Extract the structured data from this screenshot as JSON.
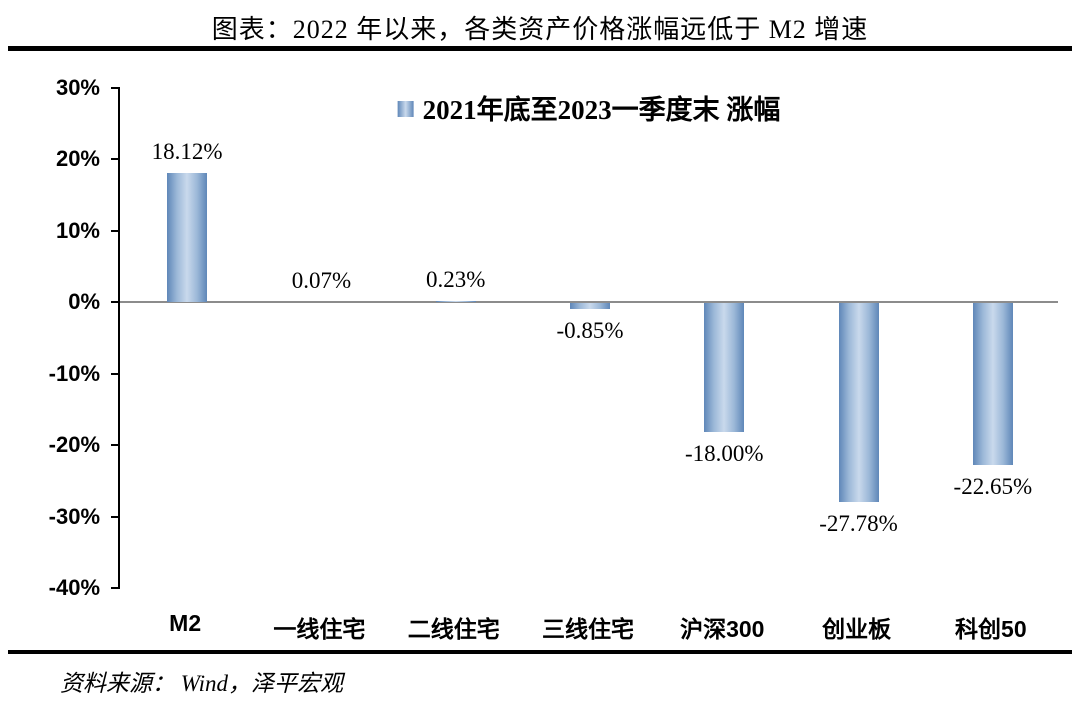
{
  "header": {
    "title": "图表：2022 年以来，各类资产价格涨幅远低于 M2 增速"
  },
  "footer": {
    "source": "资料来源： Wind，泽平宏观"
  },
  "chart_data": {
    "type": "bar",
    "title": "图表：2022 年以来，各类资产价格涨幅远低于 M2 增速",
    "legend": "2021年底至2023一季度末 涨幅",
    "categories": [
      "M2",
      "一线住宅",
      "二线住宅",
      "三线住宅",
      "沪深300",
      "创业板",
      "科创50"
    ],
    "values": [
      18.12,
      0.07,
      0.23,
      -0.85,
      -18.0,
      -27.78,
      -22.65
    ],
    "labels": [
      "18.12%",
      "0.07%",
      "0.23%",
      "-0.85%",
      "-18.00%",
      "-27.78%",
      "-22.65%"
    ],
    "ylim": [
      -40,
      30
    ],
    "yticks": [
      30,
      20,
      10,
      0,
      -10,
      -20,
      -30,
      -40
    ],
    "ytick_labels": [
      "30%",
      "20%",
      "10%",
      "0%",
      "-10%",
      "-20%",
      "-30%",
      "-40%"
    ],
    "xlabel": "",
    "ylabel": "",
    "grid": false,
    "legend_position": "top-center",
    "bar_color": "#5f87b8",
    "bar_color_light": "#c9d9ec",
    "zero_line_color": "#8c8c8c"
  }
}
